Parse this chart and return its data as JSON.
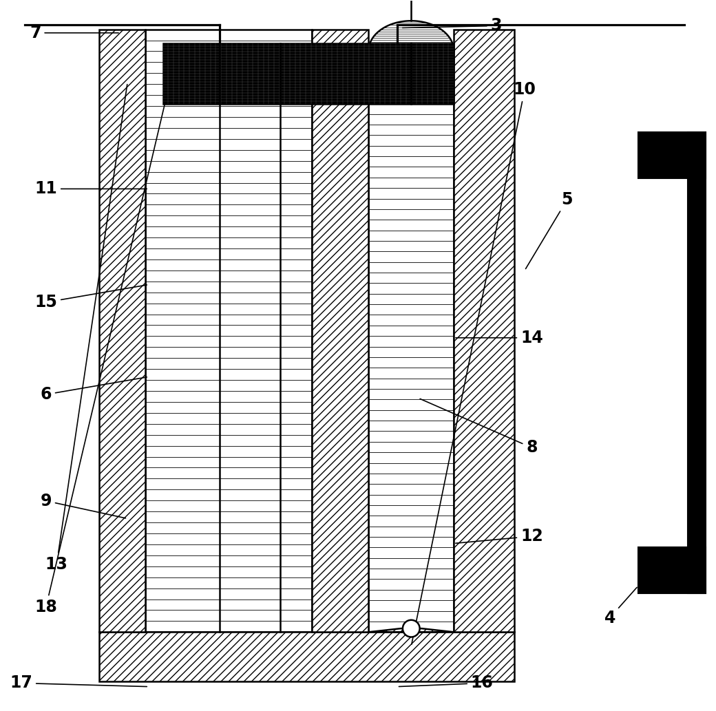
{
  "bg_color": "#ffffff",
  "lc": "#000000",
  "lw": 1.8,
  "fig_w": 10.4,
  "fig_h": 10.33,
  "dpi": 100,
  "labels_info": [
    [
      "3",
      [
        0.695,
        0.965
      ],
      [
        0.56,
        0.962
      ]
    ],
    [
      "4",
      [
        0.855,
        0.13
      ],
      [
        0.895,
        0.175
      ]
    ],
    [
      "5",
      [
        0.795,
        0.72
      ],
      [
        0.735,
        0.62
      ]
    ],
    [
      "6",
      [
        0.06,
        0.445
      ],
      [
        0.205,
        0.47
      ]
    ],
    [
      "7",
      [
        0.045,
        0.955
      ],
      [
        0.165,
        0.955
      ]
    ],
    [
      "8",
      [
        0.745,
        0.37
      ],
      [
        0.585,
        0.44
      ]
    ],
    [
      "9",
      [
        0.06,
        0.295
      ],
      [
        0.175,
        0.27
      ]
    ],
    [
      "10",
      [
        0.735,
        0.875
      ],
      [
        0.575,
        0.09
      ]
    ],
    [
      "11",
      [
        0.06,
        0.735
      ],
      [
        0.205,
        0.735
      ]
    ],
    [
      "12",
      [
        0.745,
        0.245
      ],
      [
        0.635,
        0.235
      ]
    ],
    [
      "13",
      [
        0.075,
        0.205
      ],
      [
        0.175,
        0.885
      ]
    ],
    [
      "14",
      [
        0.745,
        0.525
      ],
      [
        0.635,
        0.525
      ]
    ],
    [
      "15",
      [
        0.06,
        0.575
      ],
      [
        0.205,
        0.6
      ]
    ],
    [
      "16",
      [
        0.675,
        0.038
      ],
      [
        0.555,
        0.033
      ]
    ],
    [
      "17",
      [
        0.025,
        0.038
      ],
      [
        0.205,
        0.033
      ]
    ],
    [
      "18",
      [
        0.06,
        0.145
      ],
      [
        0.23,
        0.865
      ]
    ]
  ]
}
